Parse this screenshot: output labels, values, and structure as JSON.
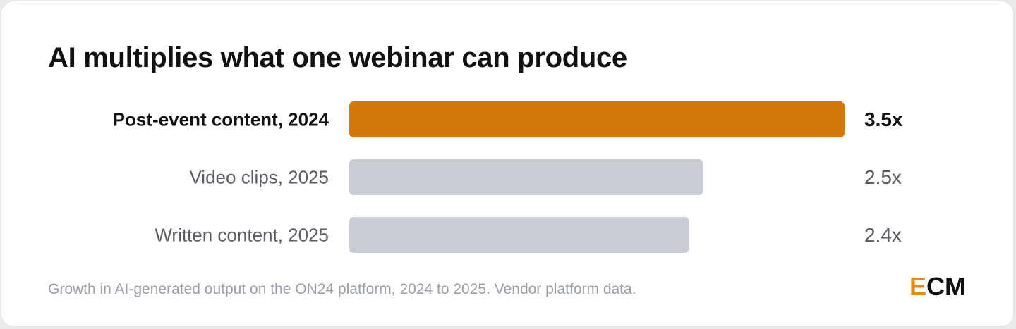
{
  "title": "AI multiplies what one webinar can produce",
  "footnote": "Growth in AI-generated output on the ON24 platform, 2024 to 2025. Vendor platform data.",
  "logo": {
    "text_first": "E",
    "text_rest": "CM",
    "accent_color": "#e88a0c",
    "text_color": "#111111"
  },
  "colors": {
    "highlight": "#d5780b",
    "muted": "#c9ccd3",
    "highlight_text": "#111111",
    "muted_text": "#5a5d66"
  },
  "chart_data": {
    "type": "bar",
    "orientation": "horizontal",
    "categories": [
      "Post-event content, 2024",
      "Video clips, 2025",
      "Written content, 2025"
    ],
    "values": [
      3.5,
      2.5,
      2.4
    ],
    "value_labels": [
      "3.5x",
      "2.5x",
      "2.4x"
    ],
    "highlight_index": 0,
    "xlim": [
      0,
      3.5
    ],
    "grid": false,
    "title": "AI multiplies what one webinar can produce",
    "xlabel": "",
    "ylabel": ""
  }
}
